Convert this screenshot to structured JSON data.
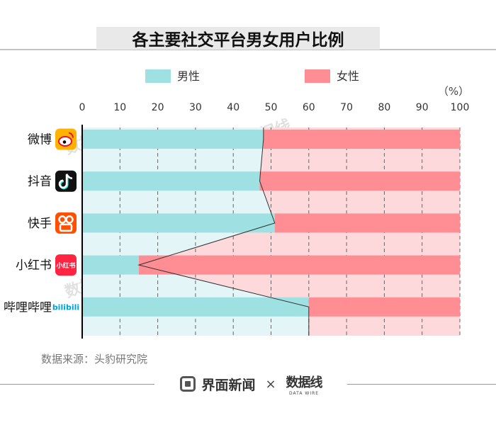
{
  "title": "各主要社交平台男女用户比例",
  "unit": "（%）",
  "source": "数据来源：头豹研究院",
  "brand": {
    "name": "界面新闻",
    "separator": "×",
    "partner": "数据线",
    "partner_sub": "DATA WIRE"
  },
  "watermark": "数据线",
  "colors": {
    "male": "#9fe0e3",
    "male_band": "#e3f5f7",
    "female": "#ff8d94",
    "female_band": "#fdd9dc",
    "axis": "#000000",
    "grid": "#666666",
    "title_bar": "#e9e9e9"
  },
  "chart_data": {
    "type": "bar",
    "orientation": "horizontal",
    "stacked": true,
    "categories": [
      "微博",
      "抖音",
      "快手",
      "小红书",
      "哔哩哔哩"
    ],
    "icons": [
      "weibo-icon",
      "douyin-icon",
      "kuaishou-icon",
      "xiaohongshu-icon",
      "bilibili-icon"
    ],
    "icon_text": {
      "xiaohongshu": "小红书",
      "bilibili": "bilibili"
    },
    "series": [
      {
        "name": "男性",
        "values": [
          48,
          47,
          51,
          15,
          60
        ]
      },
      {
        "name": "女性",
        "values": [
          52,
          53,
          49,
          85,
          40
        ]
      }
    ],
    "xlim": [
      0,
      100
    ],
    "ticks": [
      0,
      10,
      20,
      30,
      40,
      50,
      60,
      70,
      80,
      90,
      100
    ],
    "grid": true,
    "legend_position": "top"
  }
}
